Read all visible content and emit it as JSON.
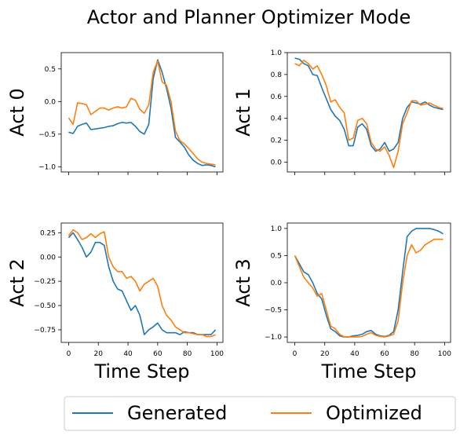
{
  "chart_data": {
    "type": "line",
    "title": "Actor and Planner Optimizer Mode",
    "legend": {
      "placement": "bottom",
      "entries": [
        "Generated",
        "Optimized"
      ]
    },
    "colors": {
      "Generated": "#1f77b4",
      "Optimized": "#ff7f0e"
    },
    "grid": false,
    "x_shared": [
      0,
      20,
      40,
      60,
      80,
      100
    ],
    "xlabel": "Time Step",
    "subplots": [
      {
        "ylabel": "Act 0",
        "ylim": [
          -1.08,
          0.75
        ],
        "yticks": [
          0.5,
          0.0,
          -0.5,
          -1.0
        ],
        "ytick_labels": [
          "0.5",
          "0.0",
          "−0.5",
          "−1.0"
        ],
        "xtick_labels_visible": false,
        "series": [
          {
            "name": "Generated",
            "x": [
              0,
              3,
              6,
              9,
              12,
              15,
              18,
              21,
              24,
              27,
              30,
              33,
              36,
              39,
              42,
              45,
              48,
              51,
              54,
              57,
              60,
              63,
              66,
              69,
              72,
              75,
              78,
              81,
              84,
              87,
              90,
              93,
              96,
              99
            ],
            "values": [
              -0.47,
              -0.49,
              -0.38,
              -0.35,
              -0.33,
              -0.43,
              -0.42,
              -0.41,
              -0.4,
              -0.38,
              -0.37,
              -0.34,
              -0.32,
              -0.33,
              -0.32,
              -0.38,
              -0.46,
              -0.5,
              -0.35,
              0.35,
              0.64,
              0.45,
              0.2,
              -0.1,
              -0.55,
              -0.62,
              -0.7,
              -0.82,
              -0.9,
              -0.95,
              -0.98,
              -0.97,
              -0.98,
              -1.0
            ]
          },
          {
            "name": "Optimized",
            "x": [
              0,
              3,
              6,
              9,
              12,
              15,
              18,
              21,
              24,
              27,
              30,
              33,
              36,
              39,
              42,
              45,
              48,
              51,
              54,
              57,
              60,
              63,
              66,
              69,
              72,
              75,
              78,
              81,
              84,
              87,
              90,
              93,
              96,
              99
            ],
            "values": [
              -0.25,
              -0.35,
              -0.02,
              -0.03,
              -0.05,
              -0.2,
              -0.15,
              -0.1,
              -0.1,
              -0.13,
              -0.1,
              -0.08,
              -0.1,
              -0.08,
              0.05,
              0.02,
              -0.12,
              -0.18,
              -0.05,
              0.45,
              0.62,
              0.3,
              0.25,
              0.0,
              -0.45,
              -0.6,
              -0.65,
              -0.72,
              -0.8,
              -0.88,
              -0.93,
              -0.95,
              -0.96,
              -0.97
            ]
          }
        ]
      },
      {
        "ylabel": "Act 1",
        "ylim": [
          -0.09,
          1.0
        ],
        "yticks": [
          1.0,
          0.8,
          0.6,
          0.4,
          0.2,
          0.0
        ],
        "ytick_labels": [
          "1.0",
          "0.8",
          "0.6",
          "0.4",
          "0.2",
          "0.0"
        ],
        "xtick_labels_visible": false,
        "series": [
          {
            "name": "Generated",
            "x": [
              0,
              3,
              6,
              9,
              12,
              15,
              18,
              21,
              24,
              27,
              30,
              33,
              36,
              39,
              42,
              45,
              48,
              51,
              54,
              57,
              60,
              63,
              66,
              69,
              72,
              75,
              78,
              81,
              84,
              87,
              90,
              93,
              96,
              99
            ],
            "values": [
              0.95,
              0.94,
              0.9,
              0.88,
              0.8,
              0.79,
              0.68,
              0.58,
              0.48,
              0.42,
              0.38,
              0.3,
              0.15,
              0.15,
              0.32,
              0.35,
              0.3,
              0.15,
              0.1,
              0.12,
              0.18,
              0.1,
              0.12,
              0.18,
              0.4,
              0.5,
              0.55,
              0.54,
              0.53,
              0.55,
              0.52,
              0.5,
              0.49,
              0.48
            ]
          },
          {
            "name": "Optimized",
            "x": [
              0,
              3,
              6,
              9,
              12,
              15,
              18,
              21,
              24,
              27,
              30,
              33,
              36,
              39,
              42,
              45,
              48,
              51,
              54,
              57,
              60,
              63,
              66,
              69,
              72,
              75,
              78,
              81,
              84,
              87,
              90,
              93,
              96,
              99
            ],
            "values": [
              0.9,
              0.88,
              0.93,
              0.9,
              0.85,
              0.88,
              0.8,
              0.7,
              0.55,
              0.57,
              0.5,
              0.45,
              0.2,
              0.22,
              0.38,
              0.4,
              0.35,
              0.18,
              0.12,
              0.1,
              0.14,
              0.06,
              -0.05,
              0.1,
              0.35,
              0.45,
              0.56,
              0.56,
              0.52,
              0.53,
              0.54,
              0.52,
              0.5,
              0.49
            ]
          }
        ]
      },
      {
        "ylabel": "Act 2",
        "ylim": [
          -0.88,
          0.35
        ],
        "yticks": [
          0.25,
          0.0,
          -0.25,
          -0.5,
          -0.75
        ],
        "ytick_labels": [
          "0.25",
          "0.00",
          "−0.25",
          "−0.50",
          "−0.75"
        ],
        "xtick_labels_visible": true,
        "xticks": [
          0,
          20,
          40,
          60,
          80,
          100
        ],
        "series": [
          {
            "name": "Generated",
            "x": [
              0,
              3,
              6,
              9,
              12,
              15,
              18,
              21,
              24,
              27,
              30,
              33,
              36,
              39,
              42,
              45,
              48,
              51,
              54,
              57,
              60,
              63,
              66,
              69,
              72,
              75,
              78,
              81,
              84,
              87,
              90,
              93,
              96,
              99
            ],
            "values": [
              0.2,
              0.25,
              0.18,
              0.1,
              0.0,
              0.05,
              0.15,
              0.15,
              0.12,
              -0.1,
              -0.25,
              -0.33,
              -0.35,
              -0.45,
              -0.55,
              -0.5,
              -0.6,
              -0.8,
              -0.75,
              -0.72,
              -0.68,
              -0.75,
              -0.78,
              -0.78,
              -0.78,
              -0.8,
              -0.77,
              -0.78,
              -0.78,
              -0.8,
              -0.8,
              -0.8,
              -0.8,
              -0.75
            ]
          },
          {
            "name": "Optimized",
            "x": [
              0,
              3,
              6,
              9,
              12,
              15,
              18,
              21,
              24,
              27,
              30,
              33,
              36,
              39,
              42,
              45,
              48,
              51,
              54,
              57,
              60,
              63,
              66,
              69,
              72,
              75,
              78,
              81,
              84,
              87,
              90,
              93,
              96,
              99
            ],
            "values": [
              0.22,
              0.28,
              0.25,
              0.18,
              0.2,
              0.24,
              0.2,
              0.24,
              0.26,
              0.0,
              -0.1,
              -0.15,
              -0.15,
              -0.22,
              -0.2,
              -0.25,
              -0.35,
              -0.28,
              -0.25,
              -0.22,
              -0.3,
              -0.5,
              -0.6,
              -0.65,
              -0.72,
              -0.75,
              -0.78,
              -0.78,
              -0.79,
              -0.8,
              -0.8,
              -0.82,
              -0.82,
              -0.8
            ]
          }
        ]
      },
      {
        "ylabel": "Act 3",
        "ylim": [
          -1.1,
          1.1
        ],
        "yticks": [
          1.0,
          0.5,
          0.0,
          -0.5,
          -1.0
        ],
        "ytick_labels": [
          "1.0",
          "0.5",
          "0.0",
          "−0.5",
          "−1.0"
        ],
        "xtick_labels_visible": true,
        "xticks": [
          0,
          20,
          40,
          60,
          80,
          100
        ],
        "series": [
          {
            "name": "Generated",
            "x": [
              0,
              3,
              6,
              9,
              12,
              15,
              18,
              21,
              24,
              27,
              30,
              33,
              36,
              39,
              42,
              45,
              48,
              51,
              54,
              57,
              60,
              63,
              66,
              69,
              72,
              75,
              78,
              81,
              84,
              87,
              90,
              93,
              96,
              99
            ],
            "values": [
              0.5,
              0.35,
              0.2,
              0.15,
              0.0,
              -0.2,
              -0.3,
              -0.6,
              -0.85,
              -0.9,
              -0.98,
              -1.0,
              -1.0,
              -0.98,
              -0.97,
              -0.95,
              -0.9,
              -0.88,
              -0.95,
              -0.98,
              -0.99,
              -0.97,
              -0.9,
              -0.5,
              0.2,
              0.85,
              0.95,
              1.0,
              1.0,
              1.0,
              1.0,
              0.98,
              0.95,
              0.9
            ]
          },
          {
            "name": "Optimized",
            "x": [
              0,
              3,
              6,
              9,
              12,
              15,
              18,
              21,
              24,
              27,
              30,
              33,
              36,
              39,
              42,
              45,
              48,
              51,
              54,
              57,
              60,
              63,
              66,
              69,
              72,
              75,
              78,
              81,
              84,
              87,
              90,
              93,
              96,
              99
            ],
            "values": [
              0.5,
              0.3,
              0.1,
              0.0,
              -0.1,
              -0.25,
              -0.2,
              -0.5,
              -0.8,
              -0.85,
              -0.95,
              -1.0,
              -1.0,
              -1.0,
              -1.0,
              -0.99,
              -0.95,
              -0.92,
              -0.97,
              -0.99,
              -1.0,
              -0.98,
              -0.95,
              -0.7,
              0.0,
              0.5,
              0.7,
              0.55,
              0.6,
              0.7,
              0.75,
              0.8,
              0.8,
              0.8
            ]
          }
        ]
      }
    ]
  }
}
